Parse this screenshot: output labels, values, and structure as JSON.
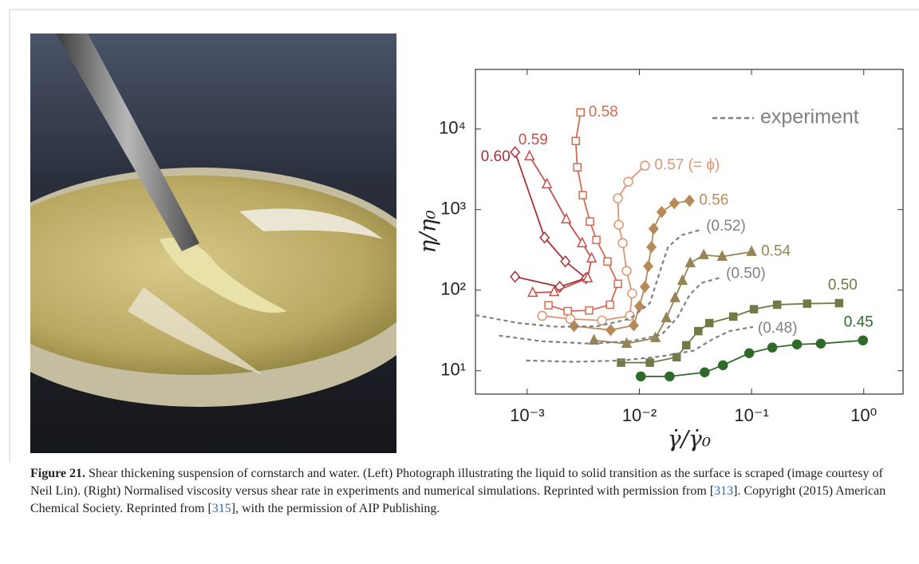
{
  "chart_data": {
    "type": "line",
    "x_label": "γ̇/γ̇₀",
    "y_label": "η/η₀",
    "xscale": "log",
    "yscale": "log",
    "xlim": [
      0.000346,
      2.24
    ],
    "ylim": [
      5.13,
      54950
    ],
    "xticks": [
      {
        "value": 0.001,
        "label": "10⁻³"
      },
      {
        "value": 0.01,
        "label": "10⁻²"
      },
      {
        "value": 0.1,
        "label": "10⁻¹"
      },
      {
        "value": 1,
        "label": "10⁰"
      }
    ],
    "yticks": [
      {
        "value": 10,
        "label": "10¹"
      },
      {
        "value": 100,
        "label": "10²"
      },
      {
        "value": 1000,
        "label": "10³"
      },
      {
        "value": 10000,
        "label": "10⁴"
      }
    ],
    "legend": {
      "label": "experiment",
      "color": "#808080",
      "corner": "upper right"
    },
    "series": [
      {
        "name": "0.60",
        "color": "#a8323a",
        "marker": "diamond",
        "filled": false,
        "x": [
          0.00078,
          0.00143,
          0.00219,
          0.00335,
          0.00195,
          0.00078
        ],
        "values": [
          5160,
          450,
          227,
          141,
          110,
          147
        ]
      },
      {
        "name": "0.59",
        "color": "#c4504a",
        "marker": "triangle",
        "filled": false,
        "x": [
          0.00105,
          0.0015,
          0.00223,
          0.00309,
          0.00375,
          0.00346,
          0.00174,
          0.00112
        ],
        "values": [
          4600,
          2070,
          760,
          384,
          249,
          141,
          95,
          93
        ]
      },
      {
        "name": "0.58",
        "color": "#d46a50",
        "marker": "square",
        "filled": false,
        "x": [
          0.00155,
          0.0023,
          0.00357,
          0.00547,
          0.00644,
          0.0052,
          0.00414,
          0.00363,
          0.00313,
          0.0028,
          0.00271,
          0.00299
        ],
        "values": [
          65,
          55,
          56,
          66,
          120,
          227,
          421,
          710,
          1510,
          3350,
          7100,
          16100
        ]
      },
      {
        "name": "0.57 (= ϕ)",
        "color": "#dc9572",
        "marker": "circle",
        "filled": false,
        "x": [
          0.00136,
          0.00242,
          0.00464,
          0.00822,
          0.00863,
          0.0077,
          0.0071,
          0.00655,
          0.00644,
          0.00796,
          0.0112
        ],
        "values": [
          48,
          44,
          42,
          48,
          91,
          173,
          384,
          648,
          1380,
          2220,
          3510
        ]
      },
      {
        "name": "0.56",
        "color": "#b88a5a",
        "marker": "diamond",
        "filled": true,
        "x": [
          0.00262,
          0.00555,
          0.00892,
          0.01,
          0.0112,
          0.012,
          0.0128,
          0.0134,
          0.0158,
          0.0205,
          0.028
        ],
        "values": [
          35.8,
          32,
          36.6,
          63,
          110,
          198,
          343,
          578,
          933,
          1200,
          1290
        ]
      },
      {
        "name": "0.54",
        "color": "#958555",
        "marker": "triangle",
        "filled": true,
        "x": [
          0.00394,
          0.0077,
          0.0139,
          0.0174,
          0.0208,
          0.0242,
          0.0284,
          0.0375,
          0.0547,
          0.1
        ],
        "values": [
          23.8,
          21.7,
          25.5,
          45,
          80,
          131,
          217,
          273,
          261,
          299
        ]
      },
      {
        "name": "0.50",
        "color": "#6f7a45",
        "marker": "square",
        "filled": true,
        "x": [
          0.00687,
          0.0124,
          0.0215,
          0.0262,
          0.0335,
          0.0421,
          0.0687,
          0.105,
          0.169,
          0.313,
          0.603
        ],
        "values": [
          12.6,
          12.6,
          14.7,
          20.7,
          31,
          39,
          47,
          58,
          66,
          68,
          69
        ]
      },
      {
        "name": "0.45",
        "color": "#2f6a2a",
        "marker": "circle",
        "filled": true,
        "x": [
          0.0103,
          0.0186,
          0.0382,
          0.0556,
          0.0953,
          0.153,
          0.254,
          0.414,
          0.984
        ],
        "values": [
          8.5,
          8.5,
          9.55,
          11.7,
          16.5,
          19.4,
          21.2,
          21.7,
          23.8
        ]
      },
      {
        "name": "(0.52)",
        "color": "#808080",
        "dashed": true,
        "x": [
          0.000346,
          0.00084,
          0.00189,
          0.00428,
          0.00822,
          0.0124,
          0.0153,
          0.018,
          0.0238,
          0.0357
        ],
        "values": [
          49,
          39,
          35,
          35.8,
          44,
          69,
          173,
          343,
          482,
          565
        ]
      },
      {
        "name": "(0.50)",
        "color": "#808080",
        "dashed": true,
        "x": [
          0.00056,
          0.00136,
          0.00363,
          0.00822,
          0.0158,
          0.0219,
          0.028,
          0.0357,
          0.0537
        ],
        "values": [
          27.3,
          23.2,
          21.7,
          23.2,
          28,
          46,
          87,
          123,
          144
        ]
      },
      {
        "name": "(0.48)",
        "color": "#808080",
        "dashed": true,
        "x": [
          0.00098,
          0.00262,
          0.00698,
          0.0158,
          0.0303,
          0.0457,
          0.0633,
          0.103
        ],
        "values": [
          13.4,
          12.9,
          13.4,
          15.1,
          17.7,
          24.9,
          31,
          35
        ]
      }
    ]
  },
  "caption": {
    "label": "Figure 21.",
    "segments": [
      "Shear thickening suspension of cornstarch and water. (Left) Photograph illustrating the liquid to solid transition as the surface is scraped (image courtesy of Neil Lin). (Right) Normalised viscosity versus shear rate in experiments and numerical simulations. Reprinted with permission from [",
      "313",
      "]. Copyright (2015) American Chemical Society. Reprinted from [",
      "315",
      "], with the permission of AIP Publishing."
    ]
  }
}
